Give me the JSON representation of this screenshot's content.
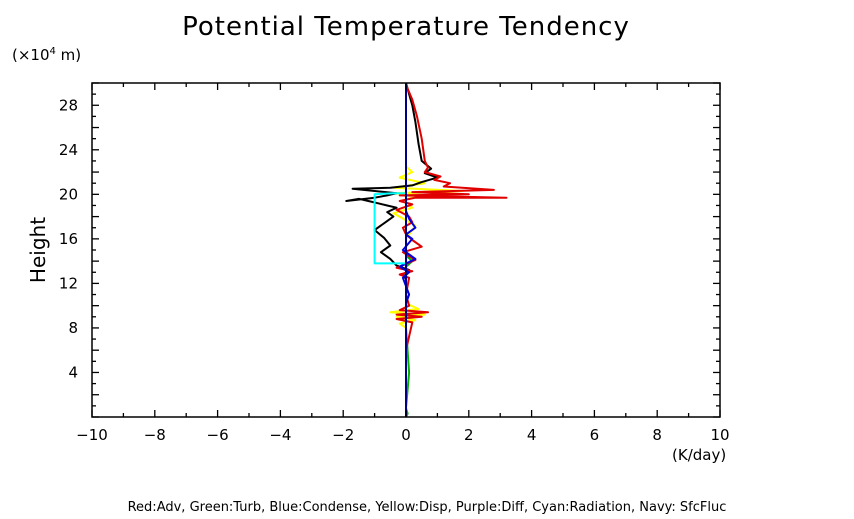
{
  "chart_data": {
    "type": "line",
    "title": "Potential Temperature Tendency",
    "ylabel": "Height",
    "yunit": "(×10",
    "yunit_exp": "4",
    "yunit_suffix": " m)",
    "xunit": "(K/day)",
    "legend_text": "Red:Adv, Green:Turb, Blue:Condense, Yellow:Disp, Purple:Diff, Cyan:Radiation, Navy: SfcFluc",
    "xlim": [
      -10,
      10
    ],
    "ylim": [
      0,
      30
    ],
    "xticks": [
      -10,
      -8,
      -6,
      -4,
      -2,
      0,
      2,
      4,
      6,
      8,
      10
    ],
    "xtick_labels": [
      "−10",
      "−8",
      "−6",
      "−4",
      "−2",
      "0",
      "2",
      "4",
      "6",
      "8",
      "10"
    ],
    "yticks": [
      4,
      8,
      12,
      16,
      20,
      24,
      28
    ],
    "ytick_labels": [
      "4",
      "8",
      "12",
      "16",
      "20",
      "24",
      "28"
    ],
    "series": [
      {
        "color": "#00b000",
        "x": [
          0,
          0.05,
          0,
          0.1,
          0,
          0,
          0.2,
          0,
          0,
          0
        ],
        "y": [
          0,
          0.3,
          0.8,
          4,
          8,
          13.5,
          14,
          14.5,
          20,
          30
        ]
      },
      {
        "color": "#ffff00",
        "x": [
          0,
          0,
          -0.2,
          0.3,
          -0.3,
          0.6,
          -0.5,
          0.4,
          0,
          0,
          0.3,
          -0.4,
          0.2,
          0,
          0,
          0.8,
          -0.5,
          1.8,
          -0.4,
          0.6,
          -0.2,
          0.2,
          0,
          0
        ],
        "y": [
          0,
          8,
          8.4,
          8.7,
          9,
          9.2,
          9.4,
          9.7,
          10.2,
          16,
          17.2,
          18.3,
          18.8,
          19.2,
          19.6,
          19.9,
          20.1,
          20.3,
          20.6,
          21,
          21.5,
          22,
          22.5,
          30
        ]
      },
      {
        "color": "#000000",
        "x": [
          0,
          0,
          -0.1,
          0.1,
          -0.3,
          -0.5,
          -0.8,
          -0.5,
          -0.7,
          -1.0,
          -0.7,
          -0.4,
          -0.6,
          -0.3,
          -0.6,
          -0.9,
          -1.2,
          -1.5,
          -1.9,
          -1.0,
          -0.6,
          -0.3,
          -1.7,
          -0.5,
          0.2,
          0.5,
          1.0,
          0.6,
          0.8,
          0.5,
          0.4,
          0.3,
          0.2,
          0.1,
          0
        ],
        "y": [
          0,
          12.4,
          12.8,
          13.2,
          13.6,
          14.2,
          14.8,
          15.4,
          16.1,
          16.8,
          17.4,
          18,
          18.4,
          18.8,
          19,
          19.2,
          19.4,
          19.6,
          19.4,
          19.7,
          19.9,
          20.1,
          20.5,
          20.6,
          20.8,
          21.1,
          21.5,
          21.9,
          22.3,
          23,
          24.5,
          26.5,
          28,
          29,
          30
        ]
      },
      {
        "color": "#e00000",
        "x": [
          0,
          0,
          0.2,
          -0.3,
          0.5,
          -0.3,
          0.7,
          -0.2,
          0.1,
          0,
          0.1,
          -0.2,
          0.2,
          -0.3,
          0.3,
          -0.1,
          0.5,
          0.2,
          0,
          -0.1,
          0.2,
          0.1,
          -0.3,
          0.2,
          -0.2,
          0.3,
          3.2,
          -0.2,
          2.0,
          0.2,
          2.8,
          1.2,
          1.4,
          0.9,
          1.1,
          0.6,
          0.7,
          0.6,
          0.5,
          0.35,
          0.2,
          0.05,
          0
        ],
        "y": [
          0,
          6,
          8.5,
          8.8,
          9.0,
          9.2,
          9.4,
          9.6,
          10,
          11,
          12.5,
          12.8,
          13.1,
          13.4,
          14.1,
          14.8,
          15.3,
          15.9,
          16.4,
          17,
          17.5,
          18,
          18.6,
          19.1,
          19.4,
          19.7,
          19.7,
          19.9,
          20,
          20.2,
          20.4,
          20.7,
          21,
          21.3,
          21.6,
          22,
          22.4,
          23,
          25,
          27,
          28.5,
          29.5,
          30
        ]
      },
      {
        "color": "#0000e0",
        "x": [
          0,
          0,
          0.1,
          -0.1,
          0.1,
          -0.2,
          0.3,
          -0.1,
          0.2,
          0,
          0.3,
          0.1,
          0,
          0
        ],
        "y": [
          0,
          10.2,
          11,
          12.5,
          13,
          13.5,
          14.2,
          15,
          16,
          16.4,
          17,
          17.8,
          18.5,
          30
        ]
      },
      {
        "color": "#00ffff",
        "x": [
          0,
          0,
          -1.0,
          -1.0,
          -1.0,
          -0.4,
          0,
          0
        ],
        "y": [
          0,
          13.8,
          13.8,
          16.5,
          20.0,
          20.1,
          20.1,
          30
        ]
      },
      {
        "color": "#000080",
        "x": [
          0,
          0,
          0
        ],
        "y": [
          0,
          15,
          30
        ]
      }
    ]
  }
}
